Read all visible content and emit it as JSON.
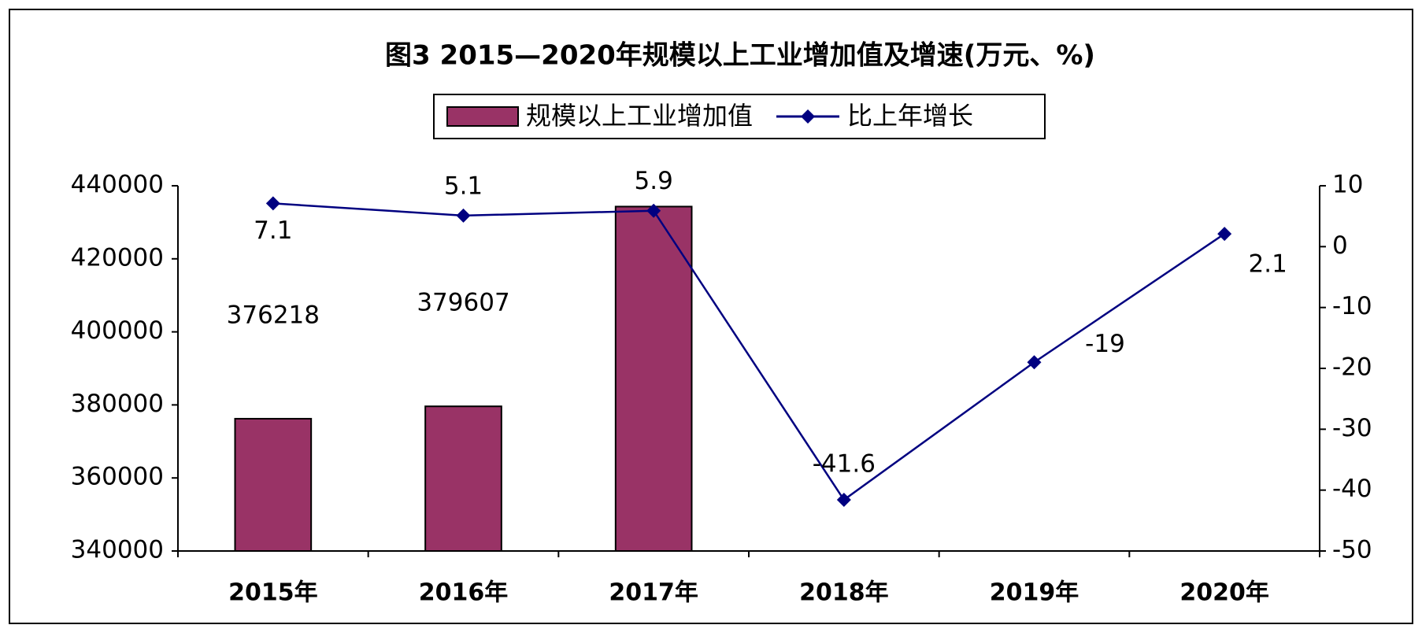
{
  "chart_data": {
    "type": "bar-line",
    "title": "图3 2015—2020年规模以上工业增加值及增速(万元、%)",
    "categories": [
      "2015年",
      "2016年",
      "2017年",
      "2018年",
      "2019年",
      "2020年"
    ],
    "series": [
      {
        "name": "规模以上工业增加值",
        "type": "bar",
        "color": "#993366",
        "values": [
          376218,
          379607,
          434300,
          null,
          null,
          null
        ],
        "value_labels": [
          "376218",
          "379607",
          null,
          null,
          null,
          null
        ]
      },
      {
        "name": "比上年增长",
        "type": "line",
        "color": "#000080",
        "axis": "y2",
        "values": [
          7.1,
          5.1,
          5.9,
          -41.6,
          -19,
          2.1
        ]
      }
    ],
    "ylim": [
      340000,
      440000
    ],
    "yticks": [
      340000,
      360000,
      380000,
      400000,
      420000,
      440000
    ],
    "y2lim": [
      -50,
      10
    ],
    "y2ticks": [
      -50,
      -40,
      -30,
      -20,
      -10,
      0,
      10
    ],
    "legend": "top"
  }
}
